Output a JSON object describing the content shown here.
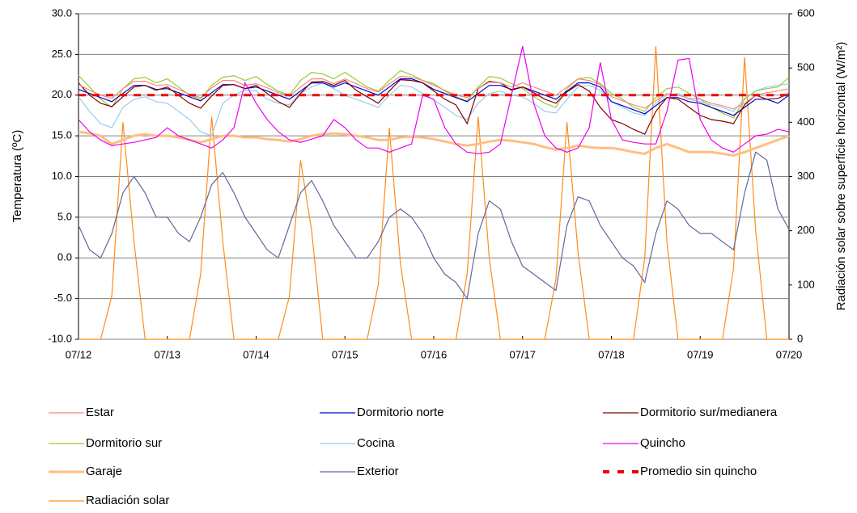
{
  "chart_data": {
    "type": "line",
    "y_label": "Temperatura (ºC)",
    "y2_label": "Radiación solar sobre superficie horizontal (W/m²)",
    "categories": [
      "07/12",
      null,
      null,
      null,
      null,
      null,
      null,
      null,
      "07/13",
      null,
      null,
      null,
      null,
      null,
      null,
      null,
      "07/14",
      null,
      null,
      null,
      null,
      null,
      null,
      null,
      "07/15",
      null,
      null,
      null,
      null,
      null,
      null,
      null,
      "07/16",
      null,
      null,
      null,
      null,
      null,
      null,
      null,
      "07/17",
      null,
      null,
      null,
      null,
      null,
      null,
      null,
      "07/18",
      null,
      null,
      null,
      null,
      null,
      null,
      null,
      "07/19",
      null,
      null,
      null,
      null,
      null,
      null,
      null,
      "07/20"
    ],
    "ylim": [
      -10,
      30
    ],
    "yticks": [
      {
        "value": -10,
        "label": "-10.0"
      },
      {
        "value": -5,
        "label": "-5.0"
      },
      {
        "value": 0,
        "label": "0.0"
      },
      {
        "value": 5,
        "label": "5.0"
      },
      {
        "value": 10,
        "label": "10.0"
      },
      {
        "value": 15,
        "label": "15.0"
      },
      {
        "value": 20,
        "label": "20.0"
      },
      {
        "value": 25,
        "label": "25.0"
      },
      {
        "value": 30,
        "label": "30.0"
      }
    ],
    "y2lim": [
      0,
      600
    ],
    "y2ticks": [
      0,
      100,
      200,
      300,
      400,
      500,
      600
    ],
    "grid": true,
    "legend": "bottom",
    "series": [
      {
        "name": "Estar",
        "color": "#f08a80",
        "values": [
          21.3,
          20.6,
          20,
          19.6,
          20.8,
          21.7,
          21.7,
          21.2,
          21.3,
          20.7,
          20.1,
          19.7,
          20.9,
          21.8,
          21.8,
          21.2,
          21.4,
          20.9,
          20.3,
          19.9,
          21,
          22,
          22,
          21.4,
          22,
          21.4,
          20.8,
          20.4,
          21.4,
          22.3,
          22.2,
          21.8,
          21.2,
          20.6,
          20,
          19.7,
          20.8,
          21.6,
          21.5,
          21,
          21.5,
          21,
          20.5,
          20,
          21,
          22,
          21.8,
          21.3,
          19.8,
          19.3,
          18.8,
          18.4,
          19.3,
          20.2,
          20,
          19.6,
          19.5,
          19,
          18.7,
          18.3,
          19,
          20,
          20.3,
          20.5,
          20.8
        ]
      },
      {
        "name": "Dormitorio norte",
        "color": "#0000cc",
        "values": [
          20.7,
          20.2,
          19.7,
          19.2,
          20.2,
          21.2,
          21.2,
          20.7,
          20.8,
          20.3,
          19.8,
          19.3,
          20.3,
          21.3,
          21.3,
          20.8,
          21,
          20.5,
          20,
          19.5,
          20.5,
          21.5,
          21.5,
          21,
          21.5,
          21,
          20.5,
          20,
          21,
          22,
          22,
          21.5,
          20.7,
          20.2,
          19.7,
          19.2,
          20.2,
          21.2,
          21.2,
          20.7,
          21,
          20.5,
          20,
          19.5,
          20.5,
          21.5,
          21.5,
          21,
          19.2,
          18.7,
          18.2,
          17.7,
          18.7,
          19.7,
          19.7,
          19.2,
          19,
          18.5,
          18,
          17.5,
          18.5,
          19.5,
          19.5,
          19,
          20
        ]
      },
      {
        "name": "Dormitorio sur/medianera",
        "color": "#800000",
        "values": [
          21.5,
          20,
          19,
          18.6,
          19.8,
          21,
          21.2,
          20.6,
          21,
          20,
          19,
          18.4,
          19.9,
          21.2,
          21.3,
          20.8,
          21.2,
          20.2,
          19.2,
          18.5,
          20.2,
          21.6,
          21.7,
          21.2,
          21.8,
          20.6,
          19.8,
          19,
          20.5,
          21.9,
          21.8,
          21.5,
          20.5,
          19.5,
          18.8,
          16.5,
          20.8,
          21.7,
          21.5,
          20.6,
          21,
          20.3,
          19.5,
          19,
          20.4,
          21.3,
          20.5,
          18.5,
          17,
          16.5,
          15.8,
          15.2,
          18,
          19.7,
          19.5,
          18.5,
          17.5,
          17,
          16.8,
          16.5,
          18.8,
          20,
          19.5,
          19.6,
          20.2
        ]
      },
      {
        "name": "Dormitorio sur",
        "color": "#99cc33",
        "values": [
          22.4,
          21,
          19.5,
          18.5,
          20.8,
          22,
          22.2,
          21.5,
          22,
          21,
          20,
          19.5,
          21.2,
          22.2,
          22.4,
          21.8,
          22.3,
          21.3,
          20.5,
          20,
          21.8,
          22.8,
          22.6,
          22,
          22.8,
          21.9,
          21,
          20.5,
          21.8,
          23,
          22.5,
          21.8,
          21.4,
          20.5,
          19.8,
          19.3,
          21,
          22.3,
          22.1,
          21.4,
          20.8,
          19.8,
          19,
          18.5,
          20.8,
          22,
          22.2,
          21.4,
          20.2,
          19.5,
          18.5,
          18,
          19.7,
          20.8,
          21,
          20.2,
          19.5,
          18.5,
          17.8,
          17.2,
          19.5,
          20.5,
          20.8,
          21,
          22.2
        ]
      },
      {
        "name": "Cocina",
        "color": "#99ccee",
        "values": [
          19.8,
          18,
          16.5,
          16,
          18.5,
          19.5,
          19.8,
          19.2,
          19,
          18,
          17,
          15.5,
          15,
          19,
          20,
          20.6,
          20.5,
          19.5,
          19,
          18.8,
          20.2,
          21,
          21.5,
          20.8,
          20,
          19.5,
          19,
          18.5,
          20,
          21.2,
          21,
          20.2,
          19.4,
          18.5,
          17.5,
          17,
          19,
          20.2,
          20.5,
          20,
          19.8,
          19,
          18,
          17.8,
          19.5,
          21,
          21.2,
          20.6,
          19.2,
          18.5,
          17.8,
          17.5,
          19,
          20,
          20.2,
          19.5,
          19.2,
          18.8,
          18.5,
          18,
          19.6,
          20.5,
          21,
          21.2,
          21.4
        ]
      },
      {
        "name": "Quincho",
        "color": "#ee00ee",
        "values": [
          17,
          15.5,
          14.5,
          13.8,
          14,
          14.2,
          14.5,
          14.8,
          16,
          15,
          14.5,
          14,
          13.5,
          14.5,
          16,
          21.5,
          19,
          17,
          15.5,
          14.5,
          14.2,
          14.6,
          15,
          17,
          16,
          14.5,
          13.5,
          13.5,
          13,
          13.5,
          14,
          20,
          19.5,
          16,
          14,
          13,
          12.8,
          13,
          14,
          20,
          26,
          19,
          15,
          13.5,
          13,
          13.5,
          16,
          24,
          17,
          14.5,
          14.2,
          14,
          14,
          18,
          24.3,
          24.5,
          17,
          14.5,
          13.5,
          13,
          14,
          15,
          15.2,
          15.8,
          15.5
        ]
      },
      {
        "name": "Garaje",
        "color": "#ffbf80",
        "values": [
          15.5,
          15.3,
          15,
          14,
          14.5,
          15,
          15.2,
          15,
          15,
          14.8,
          14.5,
          14.2,
          14.6,
          15,
          15,
          14.8,
          14.8,
          14.6,
          14.5,
          14.3,
          14.6,
          15,
          15.2,
          15.3,
          15.2,
          15,
          14.8,
          14.5,
          14.5,
          14.8,
          14.9,
          14.8,
          14.6,
          14.3,
          14,
          13.8,
          14,
          14.3,
          14.5,
          14.4,
          14.2,
          14,
          13.6,
          13.3,
          13.5,
          13.8,
          13.6,
          13.5,
          13.5,
          13.3,
          13,
          12.8,
          13.5,
          14,
          13.5,
          13,
          13,
          13,
          12.8,
          12.6,
          13,
          13.5,
          14,
          14.5,
          15
        ]
      },
      {
        "name": "Exterior",
        "color": "#666699",
        "values": [
          4,
          1,
          0,
          3,
          8,
          10,
          8,
          5,
          5,
          3,
          2,
          5,
          9,
          10.5,
          8,
          5,
          3,
          1,
          0,
          4,
          8,
          9.5,
          7,
          4,
          2,
          0,
          0,
          2,
          5,
          6,
          5,
          3,
          0,
          -2,
          -3,
          -5,
          3,
          7,
          6,
          2,
          -1,
          -2,
          -3,
          -4,
          4,
          7.5,
          7,
          4,
          2,
          0,
          -1,
          -3,
          3,
          7,
          6,
          4,
          3,
          3,
          2,
          1,
          8,
          13,
          12,
          6,
          3.5
        ]
      },
      {
        "name": "Promedio sin quincho",
        "color": "#ee0000",
        "value": 20
      },
      {
        "name": "Radiación solar",
        "color": "#ff8c1a",
        "axis": "y2",
        "values": [
          0,
          0,
          0,
          80,
          400,
          180,
          0,
          0,
          0,
          0,
          0,
          120,
          410,
          180,
          0,
          0,
          0,
          0,
          0,
          80,
          330,
          200,
          0,
          0,
          0,
          0,
          0,
          100,
          390,
          140,
          0,
          0,
          0,
          0,
          0,
          120,
          410,
          150,
          0,
          0,
          0,
          0,
          0,
          110,
          400,
          160,
          0,
          0,
          0,
          0,
          0,
          150,
          540,
          180,
          0,
          0,
          0,
          0,
          0,
          130,
          520,
          200,
          0,
          0,
          0
        ]
      }
    ]
  }
}
